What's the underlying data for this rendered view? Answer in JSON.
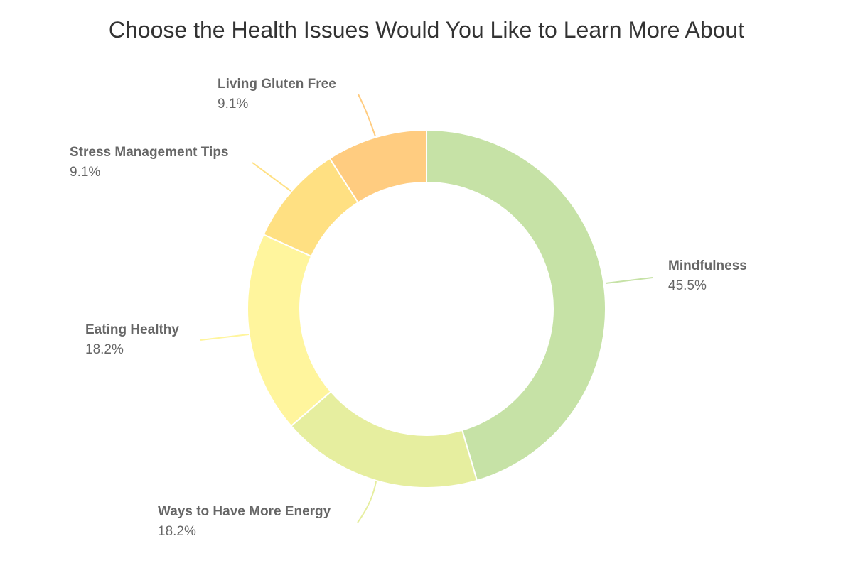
{
  "chart_data": {
    "type": "pie",
    "variant": "donut",
    "title": "Choose the Health Issues Would You Like to Learn More About",
    "slices": [
      {
        "name": "Mindfulness",
        "percent_label": "45.5%",
        "value": 45.5,
        "color": "#c6e2a6"
      },
      {
        "name": "Ways to Have More Energy",
        "percent_label": "18.2%",
        "value": 18.2,
        "color": "#e6ee9f"
      },
      {
        "name": "Eating Healthy",
        "percent_label": "18.2%",
        "value": 18.2,
        "color": "#fff59d"
      },
      {
        "name": "Stress Management Tips",
        "percent_label": "9.1%",
        "value": 9.1,
        "color": "#ffe082"
      },
      {
        "name": "Living Gluten Free",
        "percent_label": "9.1%",
        "value": 9.1,
        "color": "#ffcc80"
      }
    ],
    "start": "top",
    "direction": "clockwise",
    "legend": "none"
  }
}
